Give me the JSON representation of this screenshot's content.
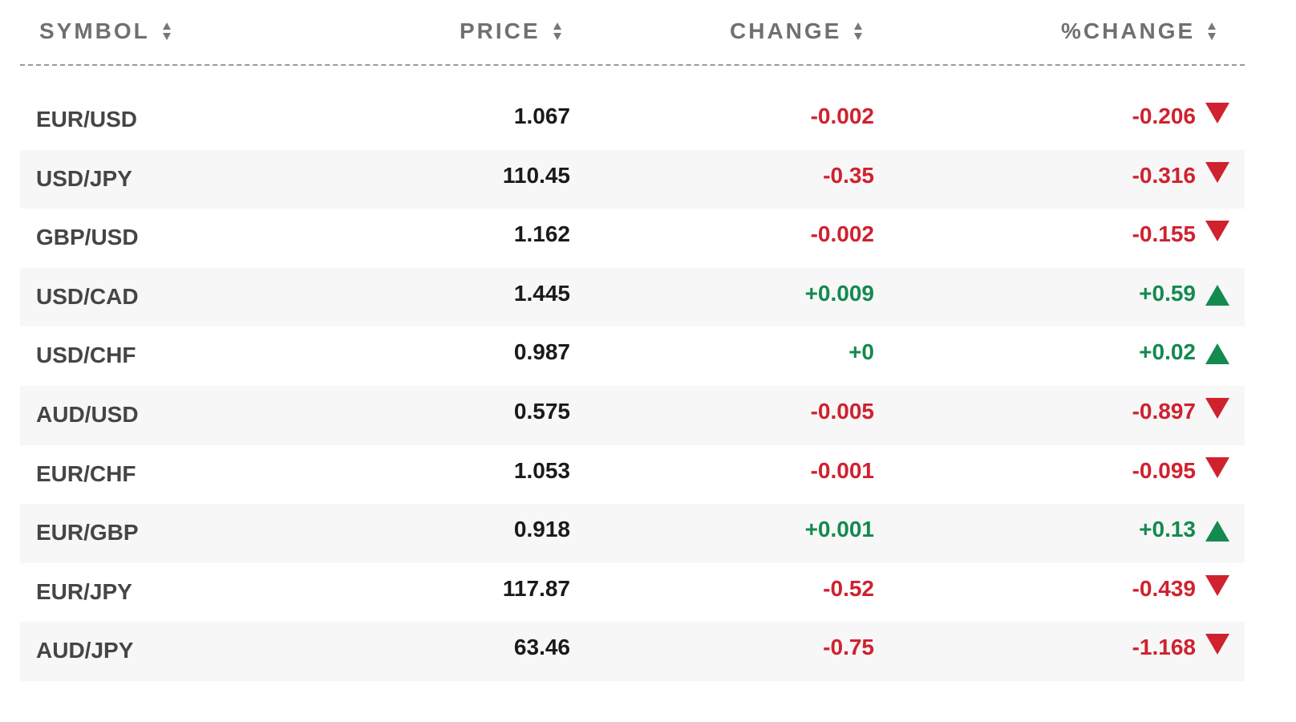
{
  "header": {
    "symbol": "SYMBOL",
    "price": "PRICE",
    "change": "CHANGE",
    "pct_change": "%CHANGE"
  },
  "colors": {
    "negative": "#d0212f",
    "positive": "#138a4e"
  },
  "rows": [
    {
      "symbol": "EUR/USD",
      "price": "1.067",
      "change": "-0.002",
      "pct": "-0.206",
      "dir": "down"
    },
    {
      "symbol": "USD/JPY",
      "price": "110.45",
      "change": "-0.35",
      "pct": "-0.316",
      "dir": "down"
    },
    {
      "symbol": "GBP/USD",
      "price": "1.162",
      "change": "-0.002",
      "pct": "-0.155",
      "dir": "down"
    },
    {
      "symbol": "USD/CAD",
      "price": "1.445",
      "change": "+0.009",
      "pct": "+0.59",
      "dir": "up"
    },
    {
      "symbol": "USD/CHF",
      "price": "0.987",
      "change": "+0",
      "pct": "+0.02",
      "dir": "up"
    },
    {
      "symbol": "AUD/USD",
      "price": "0.575",
      "change": "-0.005",
      "pct": "-0.897",
      "dir": "down"
    },
    {
      "symbol": "EUR/CHF",
      "price": "1.053",
      "change": "-0.001",
      "pct": "-0.095",
      "dir": "down"
    },
    {
      "symbol": "EUR/GBP",
      "price": "0.918",
      "change": "+0.001",
      "pct": "+0.13",
      "dir": "up"
    },
    {
      "symbol": "EUR/JPY",
      "price": "117.87",
      "change": "-0.52",
      "pct": "-0.439",
      "dir": "down"
    },
    {
      "symbol": "AUD/JPY",
      "price": "63.46",
      "change": "-0.75",
      "pct": "-1.168",
      "dir": "down"
    }
  ]
}
